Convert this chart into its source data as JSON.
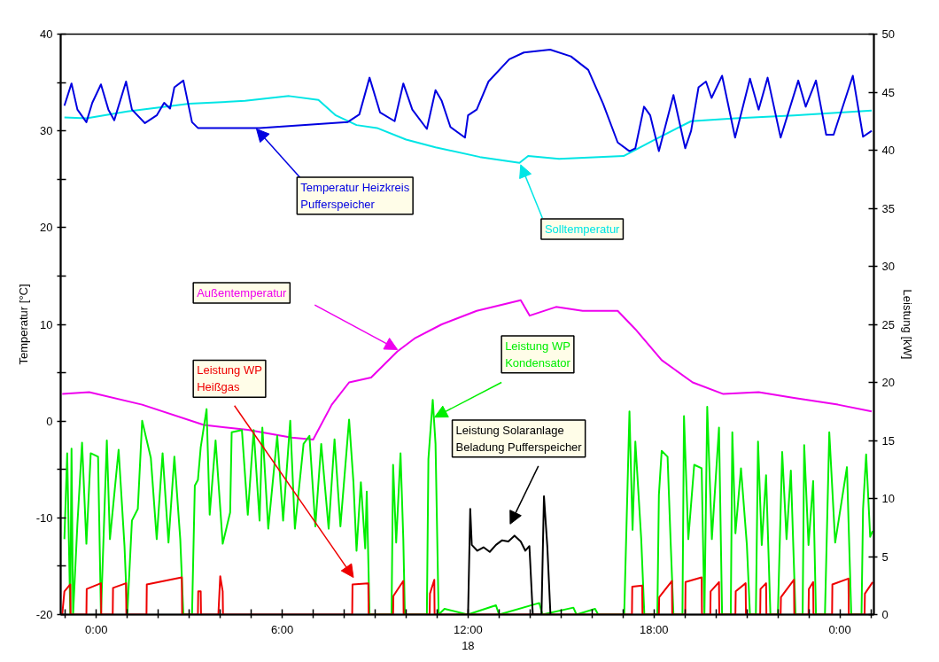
{
  "chart_data": {
    "type": "line",
    "ylabel": "Temperatur [°C]",
    "y2label": "Leistung [kW]",
    "xlim": [
      -1.15,
      25.1
    ],
    "ylim": [
      -20,
      40
    ],
    "y2lim": [
      0,
      50
    ],
    "xticks": [
      {
        "value": -1,
        "label": null
      },
      {
        "value": 0,
        "label": "0:00"
      },
      {
        "value": 1,
        "label": null
      },
      {
        "value": 2,
        "label": null
      },
      {
        "value": 3,
        "label": null
      },
      {
        "value": 4,
        "label": null
      },
      {
        "value": 5,
        "label": null
      },
      {
        "value": 6,
        "label": "6:00"
      },
      {
        "value": 7,
        "label": null
      },
      {
        "value": 8,
        "label": null
      },
      {
        "value": 9,
        "label": null
      },
      {
        "value": 10,
        "label": null
      },
      {
        "value": 11,
        "label": null
      },
      {
        "value": 12,
        "label": "12:00\n18"
      },
      {
        "value": 13,
        "label": null
      },
      {
        "value": 14,
        "label": null
      },
      {
        "value": 15,
        "label": null
      },
      {
        "value": 16,
        "label": null
      },
      {
        "value": 17,
        "label": null
      },
      {
        "value": 18,
        "label": "18:00"
      },
      {
        "value": 19,
        "label": null
      },
      {
        "value": 20,
        "label": null
      },
      {
        "value": 21,
        "label": null
      },
      {
        "value": 22,
        "label": null
      },
      {
        "value": 23,
        "label": null
      },
      {
        "value": 24,
        "label": "0:00"
      },
      {
        "value": 25,
        "label": null
      }
    ],
    "yticks": [
      -20,
      {
        "value": -15,
        "label": null
      },
      -10,
      {
        "value": -5,
        "label": null
      },
      0,
      {
        "value": 5,
        "label": null
      },
      10,
      {
        "value": 15,
        "label": null
      },
      20,
      {
        "value": 25,
        "label": null
      },
      30,
      {
        "value": 35,
        "label": null
      },
      40
    ],
    "y2ticks": [
      0,
      5,
      10,
      15,
      20,
      25,
      30,
      35,
      40,
      45,
      50
    ],
    "grid": false,
    "marker": "none",
    "line_style": "solid",
    "series": [
      {
        "name": "Temperatur Heizkreis\nPufferspeicher",
        "color": "#0000e0",
        "x": [
          -1.03,
          -0.8,
          -0.61,
          -0.32,
          -0.13,
          0.15,
          0.39,
          0.58,
          0.96,
          1.15,
          1.57,
          1.95,
          2.19,
          2.38,
          2.52,
          2.81,
          3.09,
          3.28,
          5.27,
          8.11,
          8.49,
          8.82,
          9.16,
          9.63,
          9.91,
          10.2,
          10.67,
          10.95,
          11.15,
          11.43,
          11.9,
          12.0,
          12.28,
          12.66,
          13.33,
          13.8,
          14.65,
          15.32,
          15.88,
          16.36,
          16.83,
          17.21,
          17.4,
          17.68,
          17.88,
          18.16,
          18.63,
          19.01,
          19.2,
          19.44,
          19.68,
          19.86,
          20.2,
          20.62,
          21.1,
          21.38,
          21.67,
          22.09,
          22.66,
          22.9,
          23.23,
          23.56,
          23.8,
          24.42,
          24.75,
          25.03
        ],
        "values": [
          32.6,
          34.9,
          32.2,
          30.9,
          32.9,
          34.8,
          32.2,
          31.1,
          35.1,
          32.2,
          30.8,
          31.6,
          32.9,
          32.3,
          34.5,
          35.2,
          30.9,
          30.3,
          30.3,
          30.9,
          31.7,
          35.5,
          31.9,
          31.0,
          34.9,
          32.2,
          30.2,
          34.2,
          33.1,
          30.4,
          29.3,
          31.6,
          32.2,
          35.1,
          37.4,
          38.1,
          38.4,
          37.7,
          36.3,
          32.8,
          28.8,
          27.9,
          28.2,
          32.5,
          31.6,
          27.9,
          33.7,
          28.2,
          30.0,
          34.5,
          35.1,
          33.4,
          35.7,
          29.3,
          35.4,
          32.2,
          35.5,
          29.3,
          35.2,
          32.5,
          35.2,
          29.6,
          29.6,
          35.7,
          29.4,
          30.0
        ]
      },
      {
        "name": "Solltemperatur",
        "color": "#00e5e5",
        "x": [
          -1.03,
          -0.32,
          1.0,
          3.0,
          4.8,
          6.22,
          7.17,
          7.73,
          8.4,
          9.06,
          10.0,
          10.95,
          12.38,
          13.66,
          13.94,
          14.94,
          17.02,
          17.97,
          19.2,
          20.62,
          22.52,
          25.03
        ],
        "values": [
          31.4,
          31.3,
          32.0,
          32.8,
          33.1,
          33.6,
          33.2,
          31.6,
          30.6,
          30.3,
          29.1,
          28.3,
          27.3,
          26.7,
          27.4,
          27.1,
          27.4,
          29.0,
          31.0,
          31.3,
          31.6,
          32.1
        ]
      },
      {
        "name": "Außentemperatur",
        "color": "#ee00ee",
        "x": [
          -1.1,
          -0.23,
          1.48,
          3.47,
          4.89,
          6.3,
          7.0,
          7.6,
          8.16,
          8.87,
          9.72,
          10.3,
          11.15,
          12.28,
          13.7,
          13.99,
          14.84,
          15.7,
          16.83,
          17.4,
          18.25,
          19.25,
          20.24,
          21.38,
          22.52,
          23.94,
          25.03
        ],
        "values": [
          2.8,
          3.0,
          1.7,
          -0.4,
          -0.9,
          -1.7,
          -1.9,
          1.7,
          4.0,
          4.5,
          7.2,
          8.6,
          10.0,
          11.4,
          12.5,
          10.9,
          11.8,
          11.4,
          11.4,
          9.5,
          6.3,
          4.0,
          2.8,
          3.0,
          2.4,
          1.7,
          1.0
        ]
      },
      {
        "name": "Leistung WP\nKondensator",
        "color": "#00ee00",
        "axis": "y2",
        "x": [
          -1.03,
          -0.94,
          -0.84,
          -0.8,
          -0.75,
          -0.61,
          -0.46,
          -0.32,
          -0.18,
          0.057,
          0.15,
          0.34,
          0.44,
          0.72,
          0.91,
          1.0,
          1.15,
          1.34,
          1.48,
          1.76,
          1.95,
          2.14,
          2.33,
          2.52,
          2.71,
          2.81,
          3.09,
          3.18,
          3.28,
          3.37,
          3.56,
          3.66,
          3.85,
          4.08,
          4.32,
          4.37,
          4.7,
          4.89,
          5.08,
          5.27,
          5.36,
          5.55,
          5.84,
          6.03,
          6.26,
          6.41,
          6.69,
          6.88,
          7.07,
          7.26,
          7.5,
          7.69,
          7.88,
          8.16,
          8.3,
          8.4,
          8.54,
          8.68,
          8.73,
          8.82,
          9.53,
          9.58,
          9.68,
          9.82,
          9.91,
          9.96,
          10.67,
          10.72,
          10.86,
          10.95,
          11.05,
          11.24,
          11.99,
          12.9,
          13.0,
          14.3,
          14.4,
          15.4,
          15.5,
          16.1,
          16.2,
          17.04,
          17.21,
          17.31,
          17.4,
          17.59,
          17.69,
          18.11,
          18.16,
          18.25,
          18.44,
          18.54,
          18.63,
          18.92,
          18.97,
          19.11,
          19.3,
          19.54,
          19.63,
          19.72,
          19.87,
          20.1,
          20.2,
          20.48,
          20.53,
          20.63,
          20.81,
          21.0,
          21.1,
          21.29,
          21.36,
          21.48,
          21.62,
          21.76,
          22.0,
          22.14,
          22.28,
          22.42,
          22.57,
          22.8,
          22.85,
          22.99,
          23.14,
          23.23,
          23.52,
          23.66,
          23.85,
          24.23,
          24.37,
          24.7,
          24.75,
          24.85,
          24.98,
          25.06
        ],
        "values": [
          6.5,
          13.9,
          0,
          14.3,
          0,
          7.8,
          14.8,
          6.1,
          13.9,
          13.6,
          0,
          15.0,
          6.5,
          14.2,
          5.9,
          0,
          8.1,
          9.1,
          16.7,
          13.5,
          6.5,
          13.9,
          6.2,
          13.6,
          6.5,
          0,
          0,
          11.1,
          11.6,
          14.4,
          17.7,
          8.6,
          15.0,
          6.1,
          8.8,
          15.7,
          15.9,
          8.6,
          15.9,
          8.1,
          16.1,
          7.4,
          15.4,
          8.1,
          16.7,
          7.4,
          14.7,
          15.4,
          7.6,
          14.7,
          7.4,
          15.1,
          7.6,
          16.8,
          11.4,
          5.5,
          11.4,
          5.7,
          10.6,
          0,
          0,
          12.9,
          6.2,
          13.9,
          6.5,
          0,
          0,
          13.4,
          18.5,
          14.7,
          0,
          0.5,
          0,
          0.8,
          0,
          1.0,
          0,
          0.6,
          0,
          0.5,
          0,
          0,
          17.5,
          7.3,
          14.9,
          6.5,
          0,
          0,
          10.3,
          14.1,
          13.6,
          6.2,
          0,
          0,
          17.1,
          6.5,
          12.9,
          12.6,
          0,
          17.9,
          6.5,
          16.1,
          0,
          0,
          15.7,
          7.0,
          12.6,
          6.0,
          0,
          0,
          14.9,
          6.0,
          12.0,
          0,
          0,
          14.0,
          6.5,
          12.4,
          0,
          0,
          14.6,
          6.0,
          11.5,
          0,
          0,
          15.7,
          6.2,
          12.7,
          0,
          0,
          9.1,
          13.8,
          6.7,
          7.2
        ]
      },
      {
        "name": "Leistung WP\nHeißgas",
        "color": "#ee0000",
        "axis": "y2",
        "x": [
          -1.1,
          -1.03,
          -0.84,
          -0.83,
          -0.32,
          -0.31,
          0.15,
          0.16,
          0.53,
          0.54,
          0.96,
          0.97,
          1.62,
          1.63,
          2.76,
          2.77,
          3.28,
          3.29,
          3.37,
          3.38,
          3.94,
          4.0,
          4.08,
          4.09,
          8.26,
          8.27,
          8.78,
          8.79,
          9.58,
          9.59,
          9.91,
          9.92,
          10.76,
          10.77,
          10.91,
          10.92,
          17.29,
          17.3,
          17.62,
          17.63,
          18.16,
          18.17,
          18.58,
          18.59,
          19.01,
          19.02,
          19.54,
          19.55,
          19.82,
          19.83,
          20.1,
          20.11,
          20.63,
          20.64,
          20.96,
          20.97,
          21.43,
          21.44,
          21.62,
          21.63,
          22.09,
          22.1,
          22.52,
          22.53,
          22.99,
          23.0,
          23.14,
          23.15,
          23.75,
          23.76,
          24.28,
          24.29,
          24.8,
          24.81,
          25.06
        ],
        "values": [
          0,
          2.0,
          2.6,
          0,
          0,
          2.2,
          2.7,
          0,
          0,
          2.3,
          2.7,
          0,
          0,
          2.6,
          3.2,
          0,
          0,
          2.0,
          2.0,
          0,
          0,
          3.3,
          2.0,
          0,
          0,
          2.6,
          2.7,
          0,
          0,
          1.6,
          2.9,
          0,
          0,
          1.8,
          3.0,
          0,
          0,
          2.4,
          2.5,
          0,
          0,
          1.5,
          2.9,
          0,
          0,
          2.8,
          3.2,
          0,
          0,
          2.0,
          2.8,
          0,
          0,
          2.0,
          2.7,
          0,
          0,
          2.2,
          2.7,
          0,
          0,
          1.5,
          3.0,
          0,
          0,
          2.2,
          2.8,
          0,
          0,
          2.6,
          3.1,
          0,
          0,
          1.8,
          2.8
        ]
      },
      {
        "name": "Leistung Solaranlage\nBeladung Pufferspeicher",
        "color": "#000000",
        "axis": "y2",
        "x": [
          12.0,
          12.07,
          12.12,
          12.3,
          12.5,
          12.7,
          12.9,
          13.1,
          13.3,
          13.5,
          13.7,
          13.85,
          13.98,
          14.09,
          14.37,
          14.45,
          14.56,
          14.66
        ],
        "values": [
          0,
          9.1,
          6.0,
          5.5,
          5.8,
          5.4,
          6.0,
          6.4,
          6.3,
          6.8,
          6.3,
          5.5,
          5.9,
          0,
          0,
          10.2,
          5.8,
          0
        ]
      }
    ]
  }
}
